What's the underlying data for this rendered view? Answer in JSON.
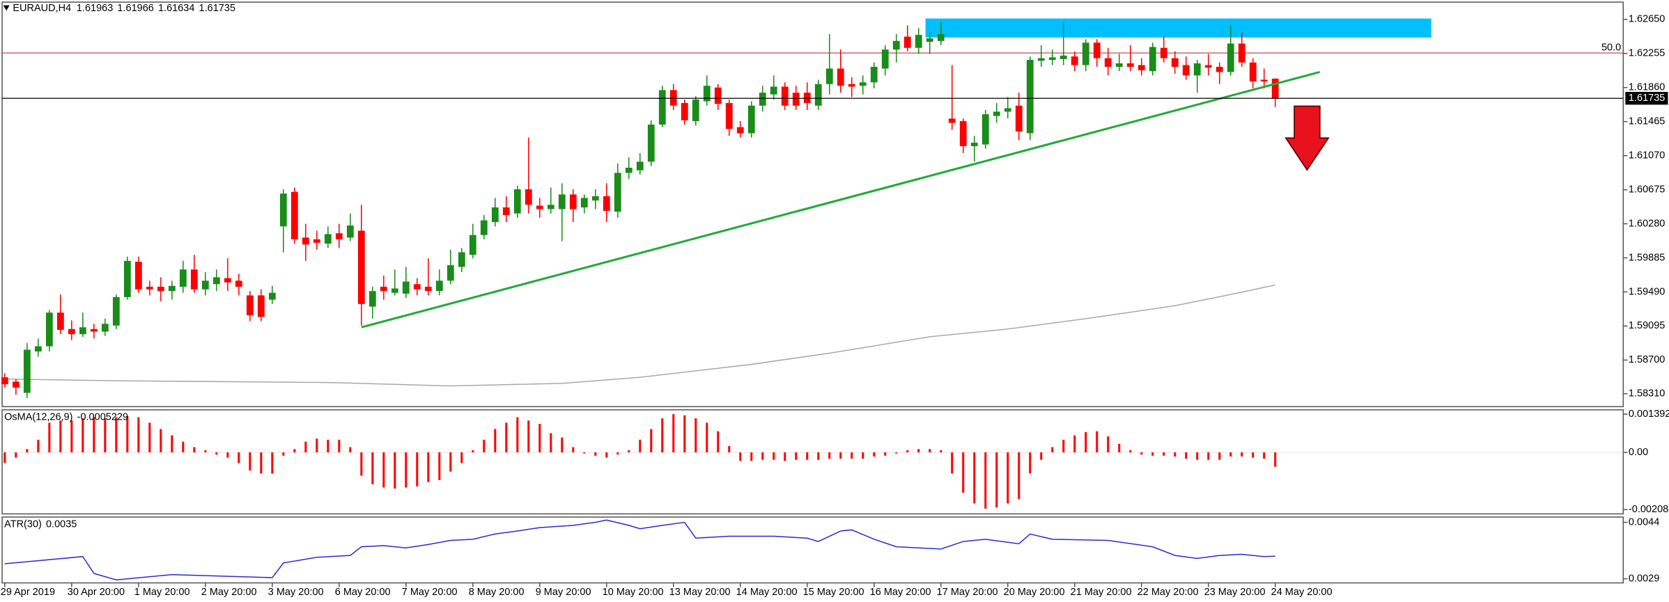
{
  "chart_data": {
    "type": "candlestick",
    "symbol": "EURAUD,H4",
    "up_color": "#1a8c1a",
    "down_color": "#ff0000",
    "categories": [
      "29 Apr 2019",
      null,
      null,
      null,
      null,
      null,
      "30 Apr 20:00",
      null,
      null,
      null,
      null,
      null,
      "1 May 20:00",
      null,
      null,
      null,
      null,
      null,
      "2 May 20:00",
      null,
      null,
      null,
      null,
      null,
      "3 May 20:00",
      null,
      null,
      null,
      null,
      null,
      "6 May 20:00",
      null,
      null,
      null,
      null,
      null,
      "7 May 20:00",
      null,
      null,
      null,
      null,
      null,
      "8 May 20:00",
      null,
      null,
      null,
      null,
      null,
      "9 May 20:00",
      null,
      null,
      null,
      null,
      null,
      "10 May 20:00",
      null,
      null,
      null,
      null,
      null,
      "13 May 20:00",
      null,
      null,
      null,
      null,
      null,
      "14 May 20:00",
      null,
      null,
      null,
      null,
      null,
      "15 May 20:00",
      null,
      null,
      null,
      null,
      null,
      "16 May 20:00",
      null,
      null,
      null,
      null,
      null,
      "17 May 20:00",
      null,
      null,
      null,
      null,
      null,
      "20 May 20:00",
      null,
      null,
      null,
      null,
      null,
      "21 May 20:00",
      null,
      null,
      null,
      null,
      null,
      "22 May 20:00",
      null,
      null,
      null,
      null,
      null,
      "23 May 20:00",
      null,
      null,
      null,
      null,
      null,
      "24 May 20:00"
    ],
    "ohlc": [
      [
        1.585,
        1.5855,
        1.5838,
        1.5842
      ],
      [
        1.5845,
        1.5848,
        1.583,
        1.5838
      ],
      [
        1.5832,
        1.589,
        1.5826,
        1.5882
      ],
      [
        1.588,
        1.5895,
        1.5874,
        1.5886
      ],
      [
        1.5886,
        1.5928,
        1.588,
        1.5925
      ],
      [
        1.5925,
        1.5946,
        1.59,
        1.5905
      ],
      [
        1.5906,
        1.5916,
        1.5893,
        1.59
      ],
      [
        1.59,
        1.5925,
        1.5897,
        1.5908
      ],
      [
        1.5906,
        1.5912,
        1.5895,
        1.5903
      ],
      [
        1.5903,
        1.5918,
        1.5898,
        1.5912
      ],
      [
        1.591,
        1.5946,
        1.5906,
        1.5943
      ],
      [
        1.5943,
        1.599,
        1.594,
        1.5985
      ],
      [
        1.5984,
        1.599,
        1.5948,
        1.5952
      ],
      [
        1.5955,
        1.5962,
        1.5945,
        1.5952
      ],
      [
        1.5955,
        1.5966,
        1.5938,
        1.595
      ],
      [
        1.595,
        1.5962,
        1.594,
        1.5956
      ],
      [
        1.5955,
        1.5985,
        1.5948,
        1.5975
      ],
      [
        1.5975,
        1.5992,
        1.5948,
        1.5952
      ],
      [
        1.5952,
        1.5972,
        1.5945,
        1.5962
      ],
      [
        1.5958,
        1.5975,
        1.595,
        1.5966
      ],
      [
        1.5965,
        1.5988,
        1.595,
        1.596
      ],
      [
        1.5962,
        1.597,
        1.5945,
        1.5955
      ],
      [
        1.5945,
        1.595,
        1.5915,
        1.5922
      ],
      [
        1.5945,
        1.5952,
        1.5915,
        1.592
      ],
      [
        1.594,
        1.5956,
        1.5935,
        1.5948
      ],
      [
        1.6025,
        1.6068,
        1.5995,
        1.6063
      ],
      [
        1.6065,
        1.607,
        1.6005,
        1.601
      ],
      [
        1.6012,
        1.6028,
        1.5985,
        1.6004
      ],
      [
        1.601,
        1.602,
        1.5998,
        1.6006
      ],
      [
        1.6005,
        1.6025,
        1.6,
        1.6016
      ],
      [
        1.6017,
        1.6028,
        1.6,
        1.601
      ],
      [
        1.6012,
        1.604,
        1.6008,
        1.6026
      ],
      [
        1.602,
        1.605,
        1.591,
        1.5935
      ],
      [
        1.5932,
        1.5955,
        1.5918,
        1.595
      ],
      [
        1.5955,
        1.5968,
        1.594,
        1.595
      ],
      [
        1.5948,
        1.5975,
        1.5945,
        1.5953
      ],
      [
        1.5947,
        1.5978,
        1.5942,
        1.5961
      ],
      [
        1.5958,
        1.5965,
        1.5945,
        1.5952
      ],
      [
        1.5955,
        1.5988,
        1.5945,
        1.595
      ],
      [
        1.595,
        1.5975,
        1.5945,
        1.5962
      ],
      [
        1.5962,
        1.5998,
        1.5958,
        1.598
      ],
      [
        1.5978,
        1.6,
        1.5972,
        1.5995
      ],
      [
        1.5992,
        1.6028,
        1.5988,
        1.6015
      ],
      [
        1.6015,
        1.6038,
        1.601,
        1.6032
      ],
      [
        1.603,
        1.6058,
        1.6025,
        1.6047
      ],
      [
        1.6047,
        1.606,
        1.603,
        1.6038
      ],
      [
        1.604,
        1.6072,
        1.6035,
        1.6068
      ],
      [
        1.6068,
        1.6128,
        1.604,
        1.605
      ],
      [
        1.6049,
        1.6058,
        1.6035,
        1.6045
      ],
      [
        1.6045,
        1.607,
        1.604,
        1.605
      ],
      [
        1.6045,
        1.6075,
        1.6008,
        1.6062
      ],
      [
        1.6062,
        1.6068,
        1.603,
        1.6045
      ],
      [
        1.6047,
        1.6062,
        1.604,
        1.6058
      ],
      [
        1.6055,
        1.6068,
        1.6045,
        1.606
      ],
      [
        1.606,
        1.6075,
        1.603,
        1.6043
      ],
      [
        1.6042,
        1.6098,
        1.6035,
        1.6087
      ],
      [
        1.6087,
        1.6105,
        1.608,
        1.6093
      ],
      [
        1.609,
        1.611,
        1.6085,
        1.61
      ],
      [
        1.61,
        1.6148,
        1.6095,
        1.6143
      ],
      [
        1.6143,
        1.6188,
        1.614,
        1.6183
      ],
      [
        1.6183,
        1.619,
        1.616,
        1.6165
      ],
      [
        1.6168,
        1.6172,
        1.6143,
        1.6148
      ],
      [
        1.6147,
        1.6176,
        1.6142,
        1.6172
      ],
      [
        1.617,
        1.62,
        1.6165,
        1.6188
      ],
      [
        1.6186,
        1.619,
        1.616,
        1.6167
      ],
      [
        1.6168,
        1.6172,
        1.613,
        1.6138
      ],
      [
        1.614,
        1.6147,
        1.6128,
        1.6133
      ],
      [
        1.6133,
        1.617,
        1.6128,
        1.6165
      ],
      [
        1.6165,
        1.6188,
        1.6158,
        1.618
      ],
      [
        1.6178,
        1.62,
        1.6172,
        1.6187
      ],
      [
        1.6187,
        1.6192,
        1.616,
        1.6165
      ],
      [
        1.618,
        1.6188,
        1.616,
        1.6165
      ],
      [
        1.618,
        1.6192,
        1.616,
        1.6168
      ],
      [
        1.6165,
        1.6195,
        1.616,
        1.619
      ],
      [
        1.619,
        1.6248,
        1.6178,
        1.6208
      ],
      [
        1.6208,
        1.623,
        1.618,
        1.6188
      ],
      [
        1.619,
        1.6198,
        1.6175,
        1.6187
      ],
      [
        1.6188,
        1.62,
        1.6178,
        1.6192
      ],
      [
        1.6192,
        1.6215,
        1.6185,
        1.621
      ],
      [
        1.6208,
        1.6235,
        1.62,
        1.623
      ],
      [
        1.623,
        1.6248,
        1.6215,
        1.624
      ],
      [
        1.6245,
        1.6258,
        1.6228,
        1.6232
      ],
      [
        1.6232,
        1.6255,
        1.6225,
        1.6247
      ],
      [
        1.6239,
        1.625,
        1.6225,
        1.6243
      ],
      [
        1.624,
        1.6262,
        1.6235,
        1.6248
      ],
      [
        1.615,
        1.6212,
        1.6137,
        1.6145
      ],
      [
        1.6147,
        1.615,
        1.611,
        1.6118
      ],
      [
        1.6118,
        1.613,
        1.61,
        1.6122
      ],
      [
        1.612,
        1.616,
        1.6115,
        1.6155
      ],
      [
        1.6153,
        1.6168,
        1.6145,
        1.6158
      ],
      [
        1.6158,
        1.6175,
        1.615,
        1.6162
      ],
      [
        1.6165,
        1.618,
        1.6125,
        1.6135
      ],
      [
        1.6133,
        1.6222,
        1.6125,
        1.6218
      ],
      [
        1.6217,
        1.6235,
        1.621,
        1.622
      ],
      [
        1.6218,
        1.623,
        1.6212,
        1.6221
      ],
      [
        1.6219,
        1.6262,
        1.6212,
        1.6223
      ],
      [
        1.6222,
        1.6228,
        1.6205,
        1.6212
      ],
      [
        1.6212,
        1.6242,
        1.6205,
        1.6238
      ],
      [
        1.6238,
        1.6242,
        1.621,
        1.622
      ],
      [
        1.622,
        1.6232,
        1.62,
        1.621
      ],
      [
        1.621,
        1.6225,
        1.6205,
        1.6214
      ],
      [
        1.6214,
        1.6235,
        1.6205,
        1.621
      ],
      [
        1.6212,
        1.622,
        1.62,
        1.6206
      ],
      [
        1.6205,
        1.6238,
        1.62,
        1.6233
      ],
      [
        1.6232,
        1.6245,
        1.6215,
        1.622
      ],
      [
        1.622,
        1.6228,
        1.6202,
        1.621
      ],
      [
        1.6212,
        1.6222,
        1.6195,
        1.62
      ],
      [
        1.62,
        1.6218,
        1.618,
        1.6214
      ],
      [
        1.6212,
        1.6225,
        1.62,
        1.6209
      ],
      [
        1.621,
        1.6215,
        1.619,
        1.6204
      ],
      [
        1.6204,
        1.6258,
        1.62,
        1.6237
      ],
      [
        1.6237,
        1.625,
        1.621,
        1.6215
      ],
      [
        1.6215,
        1.622,
        1.6185,
        1.6193
      ],
      [
        1.6195,
        1.6208,
        1.6185,
        1.6193
      ],
      [
        1.61963,
        1.61966,
        1.61634,
        1.61735
      ]
    ],
    "ylim": [
      1.5816,
      1.6285
    ],
    "yticks": [
      {
        "value": 1.6265,
        "label": "1.62650"
      },
      1.62255,
      {
        "value": 1.6186,
        "label": "1.61860"
      },
      1.61465,
      {
        "value": 1.6107,
        "label": "1.61070"
      },
      1.60675,
      {
        "value": 1.6028,
        "label": "1.60280"
      },
      1.59885,
      {
        "value": 1.5949,
        "label": "1.59490"
      },
      1.59095,
      {
        "value": 1.587,
        "label": "1.58700"
      },
      {
        "value": 1.5831,
        "label": "1.58310"
      }
    ],
    "fib_level": {
      "label": "50.0",
      "price": 1.6226,
      "color": "#b85050"
    },
    "ma": {
      "x": [
        0,
        10,
        29,
        40,
        50,
        57,
        67,
        74,
        83,
        90,
        97,
        105,
        110,
        114
      ],
      "values": [
        1.5848,
        1.5846,
        1.5844,
        1.584,
        1.5843,
        1.585,
        1.5865,
        1.5878,
        1.5897,
        1.5906,
        1.5918,
        1.5933,
        1.5946,
        1.5957
      ],
      "color": "#a8a8a8"
    },
    "trendline": {
      "x": [
        32,
        118
      ],
      "y": [
        1.5908,
        1.6204
      ],
      "color": "#22aa3a"
    },
    "zone": {
      "x": [
        83,
        128
      ],
      "y": [
        1.6244,
        1.6266
      ],
      "color": "#00bfff"
    },
    "osma": {
      "type": "bar",
      "name": "OsMA(12,26,9)",
      "color": "#ff0000",
      "values": [
        -0.00039,
        -0.00019,
        0.00012,
        0.00046,
        0.00108,
        0.00116,
        0.00116,
        0.00124,
        0.00128,
        0.00124,
        0.00128,
        0.00132,
        0.00128,
        0.00108,
        0.00085,
        0.00062,
        0.00039,
        0.00019,
        8e-05,
        -8e-05,
        -0.00019,
        -0.00039,
        -0.00066,
        -0.00077,
        -0.00077,
        -0.00012,
        0.00012,
        0.00039,
        0.0005,
        0.00046,
        0.00046,
        0.00019,
        -0.00085,
        -0.00116,
        -0.00128,
        -0.00132,
        -0.00128,
        -0.00124,
        -0.00108,
        -0.00101,
        -0.0007,
        -0.00039,
        8e-05,
        0.00046,
        0.00085,
        0.00108,
        0.00128,
        0.00116,
        0.00104,
        0.0007,
        0.00054,
        0.00019,
        -4e-05,
        -0.00012,
        -0.00019,
        -8e-05,
        8e-05,
        0.00046,
        0.00085,
        0.00124,
        0.00139,
        0.00135,
        0.00124,
        0.00108,
        0.00077,
        0.00023,
        -0.00031,
        -0.00031,
        -0.00027,
        -0.00027,
        -0.00031,
        -0.00027,
        -0.00027,
        -0.00027,
        -0.00023,
        -0.00023,
        -0.00023,
        -0.00023,
        -0.00015,
        -0.00012,
        -4e-05,
        8e-05,
        0.00012,
        0.00012,
        8e-05,
        -0.00077,
        -0.00147,
        -0.00186,
        -0.00205,
        -0.00201,
        -0.00186,
        -0.0017,
        -0.00077,
        -0.00027,
        0.00019,
        0.00046,
        0.00062,
        0.00074,
        0.00077,
        0.00058,
        0.00031,
        8e-05,
        -8e-05,
        -0.00012,
        -0.00012,
        -0.00015,
        -0.00023,
        -0.00027,
        -0.00027,
        -0.00027,
        -0.00015,
        -0.00015,
        -0.00019,
        -0.00023,
        -0.0005229
      ],
      "ylim": [
        -0.00224,
        0.00155
      ],
      "yticks": [
        0.0013923,
        {
          "value": 0,
          "label": "0.00"
        },
        -0.002084
      ]
    },
    "atr": {
      "type": "line",
      "name": "ATR(30)",
      "color": "#2a2ad0",
      "x": [
        0,
        3,
        7,
        8,
        10,
        15,
        24,
        25,
        28,
        31,
        32,
        34,
        36,
        38,
        40,
        42,
        44,
        46,
        48,
        51,
        53,
        54,
        56,
        57,
        59,
        61,
        62,
        65,
        69,
        72,
        73,
        75,
        76,
        78,
        80,
        84,
        86,
        88,
        91,
        92,
        94,
        99,
        103,
        105,
        107,
        109,
        111,
        113,
        114
      ],
      "values": [
        0.0033,
        0.00338,
        0.00349,
        0.00304,
        0.00287,
        0.00301,
        0.00293,
        0.00332,
        0.00347,
        0.00352,
        0.00375,
        0.00378,
        0.00372,
        0.00381,
        0.00392,
        0.00395,
        0.00409,
        0.00417,
        0.00426,
        0.00432,
        0.0044,
        0.00446,
        0.00432,
        0.00423,
        0.00432,
        0.0044,
        0.00398,
        0.00403,
        0.00403,
        0.00398,
        0.00389,
        0.00417,
        0.0042,
        0.00395,
        0.00375,
        0.00369,
        0.00389,
        0.00395,
        0.00383,
        0.00409,
        0.00395,
        0.00392,
        0.00375,
        0.00352,
        0.00344,
        0.00352,
        0.00355,
        0.00349,
        0.0035
      ],
      "ylim": [
        0.00279,
        0.00454
      ],
      "yticks": [
        0.0044,
        0.0029
      ]
    }
  }
}
